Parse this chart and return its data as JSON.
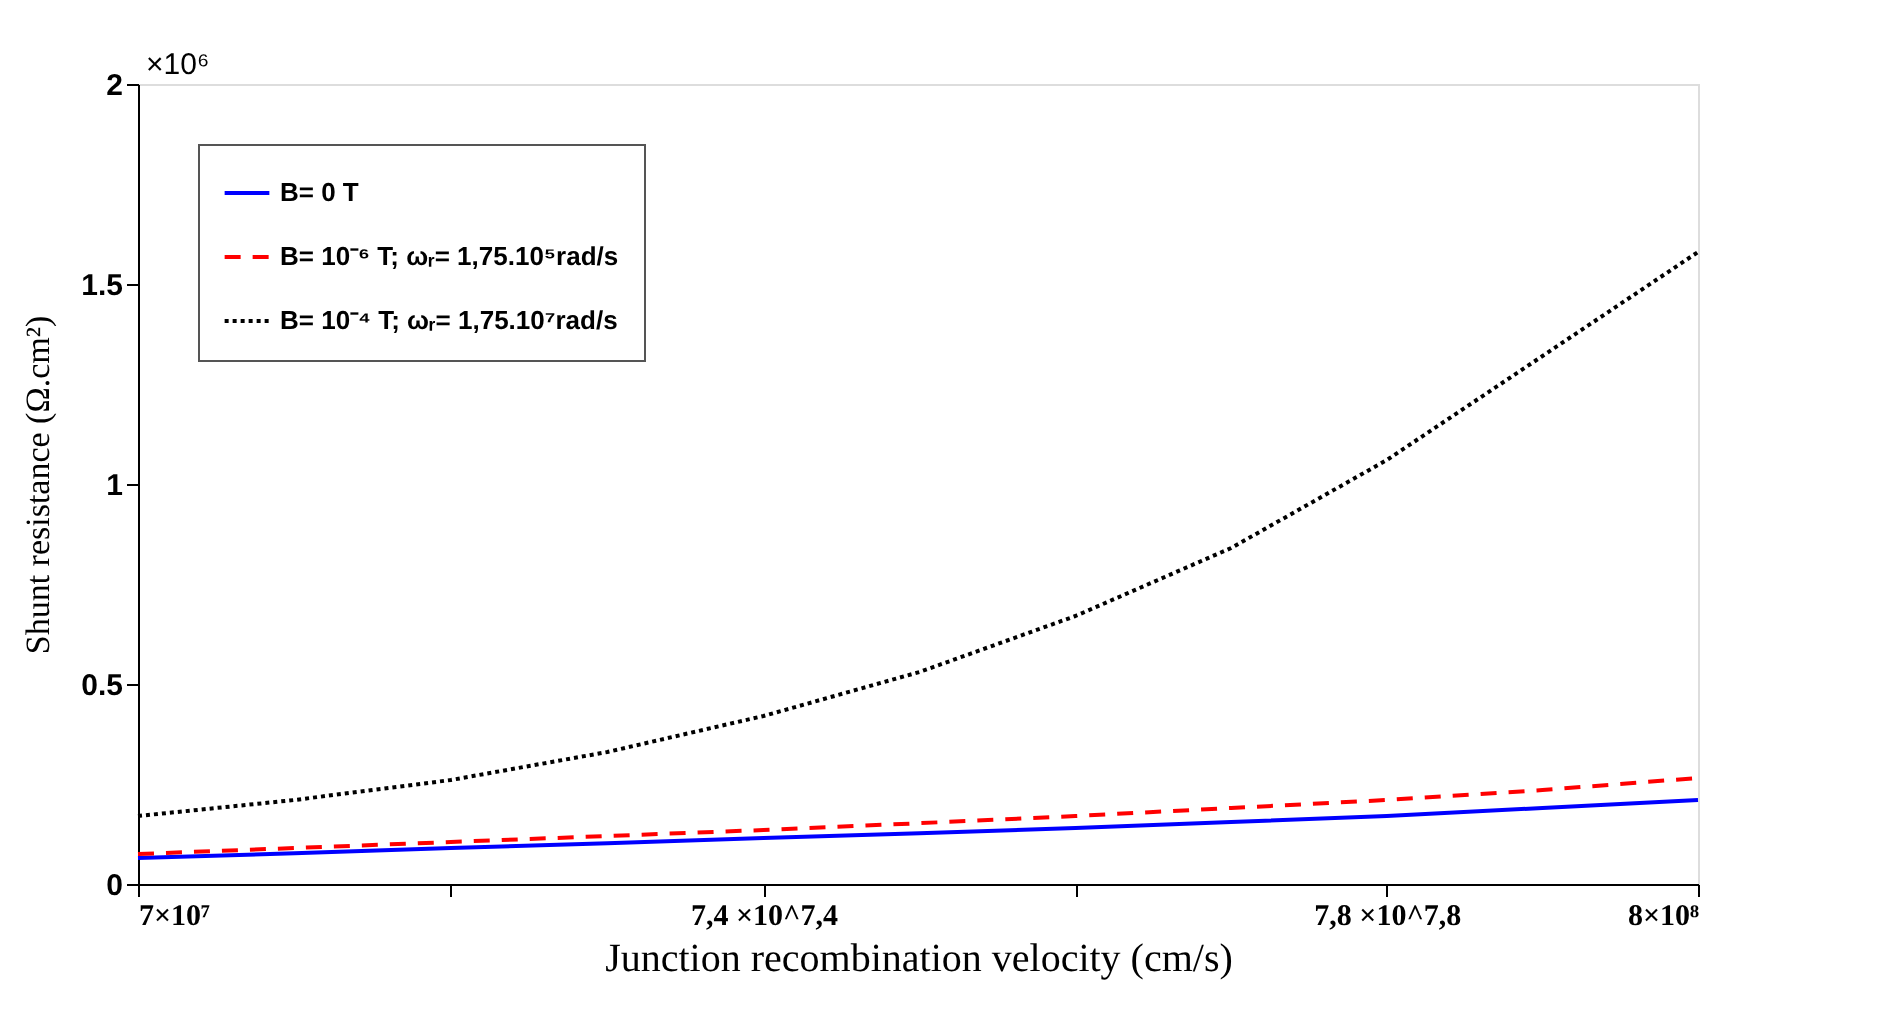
{
  "chart_data": {
    "type": "line",
    "xlabel": "Junction recombination velocity (cm/s)",
    "ylabel": "Shunt resistance (Ω.cm²)",
    "annotations": [
      "×10⁶"
    ],
    "x": [
      70000000,
      89380000,
      114100000,
      145700000,
      185900000,
      237200000,
      302600000,
      385900000,
      492100000,
      627500000,
      800000000
    ],
    "log": "x",
    "series": [
      {
        "name": "B= 0 T",
        "color": "#0000ff",
        "line_style": "solid",
        "values": [
          0.065,
          0.077,
          0.09,
          0.102,
          0.115,
          0.127,
          0.14,
          0.155,
          0.17,
          0.19,
          0.21
        ]
      },
      {
        "name": "B= 10⁻⁶ T; ωᵣ= 1,75.10⁵rad/s",
        "color": "#ff0000",
        "line_style": "dashed",
        "values": [
          0.075,
          0.09,
          0.105,
          0.12,
          0.135,
          0.152,
          0.17,
          0.19,
          0.21,
          0.235,
          0.265
        ]
      },
      {
        "name": "B= 10⁻⁴ T; ωᵣ= 1,75.10⁷rad/s",
        "color": "#000000",
        "line_style": "dotted",
        "values": [
          0.17,
          0.21,
          0.26,
          0.33,
          0.42,
          0.53,
          0.67,
          0.84,
          1.06,
          1.32,
          1.58
        ]
      }
    ],
    "xlim": [
      70000000,
      800000000
    ],
    "xticks": [
      {
        "value": 70000000,
        "label": "7×10⁷"
      },
      {
        "value": 114100000,
        "label": null
      },
      {
        "value": 185900000,
        "label": "7,4 ×10^7,4"
      },
      {
        "value": 302600000,
        "label": null
      },
      {
        "value": 492100000,
        "label": "7,8 ×10^7,8"
      },
      {
        "value": 800000000,
        "label": "8×10⁸"
      }
    ],
    "ylim": [
      0,
      2
    ],
    "yticks": [
      0,
      0.5,
      1,
      1.5,
      2
    ],
    "grid": false,
    "legend": "top left"
  }
}
